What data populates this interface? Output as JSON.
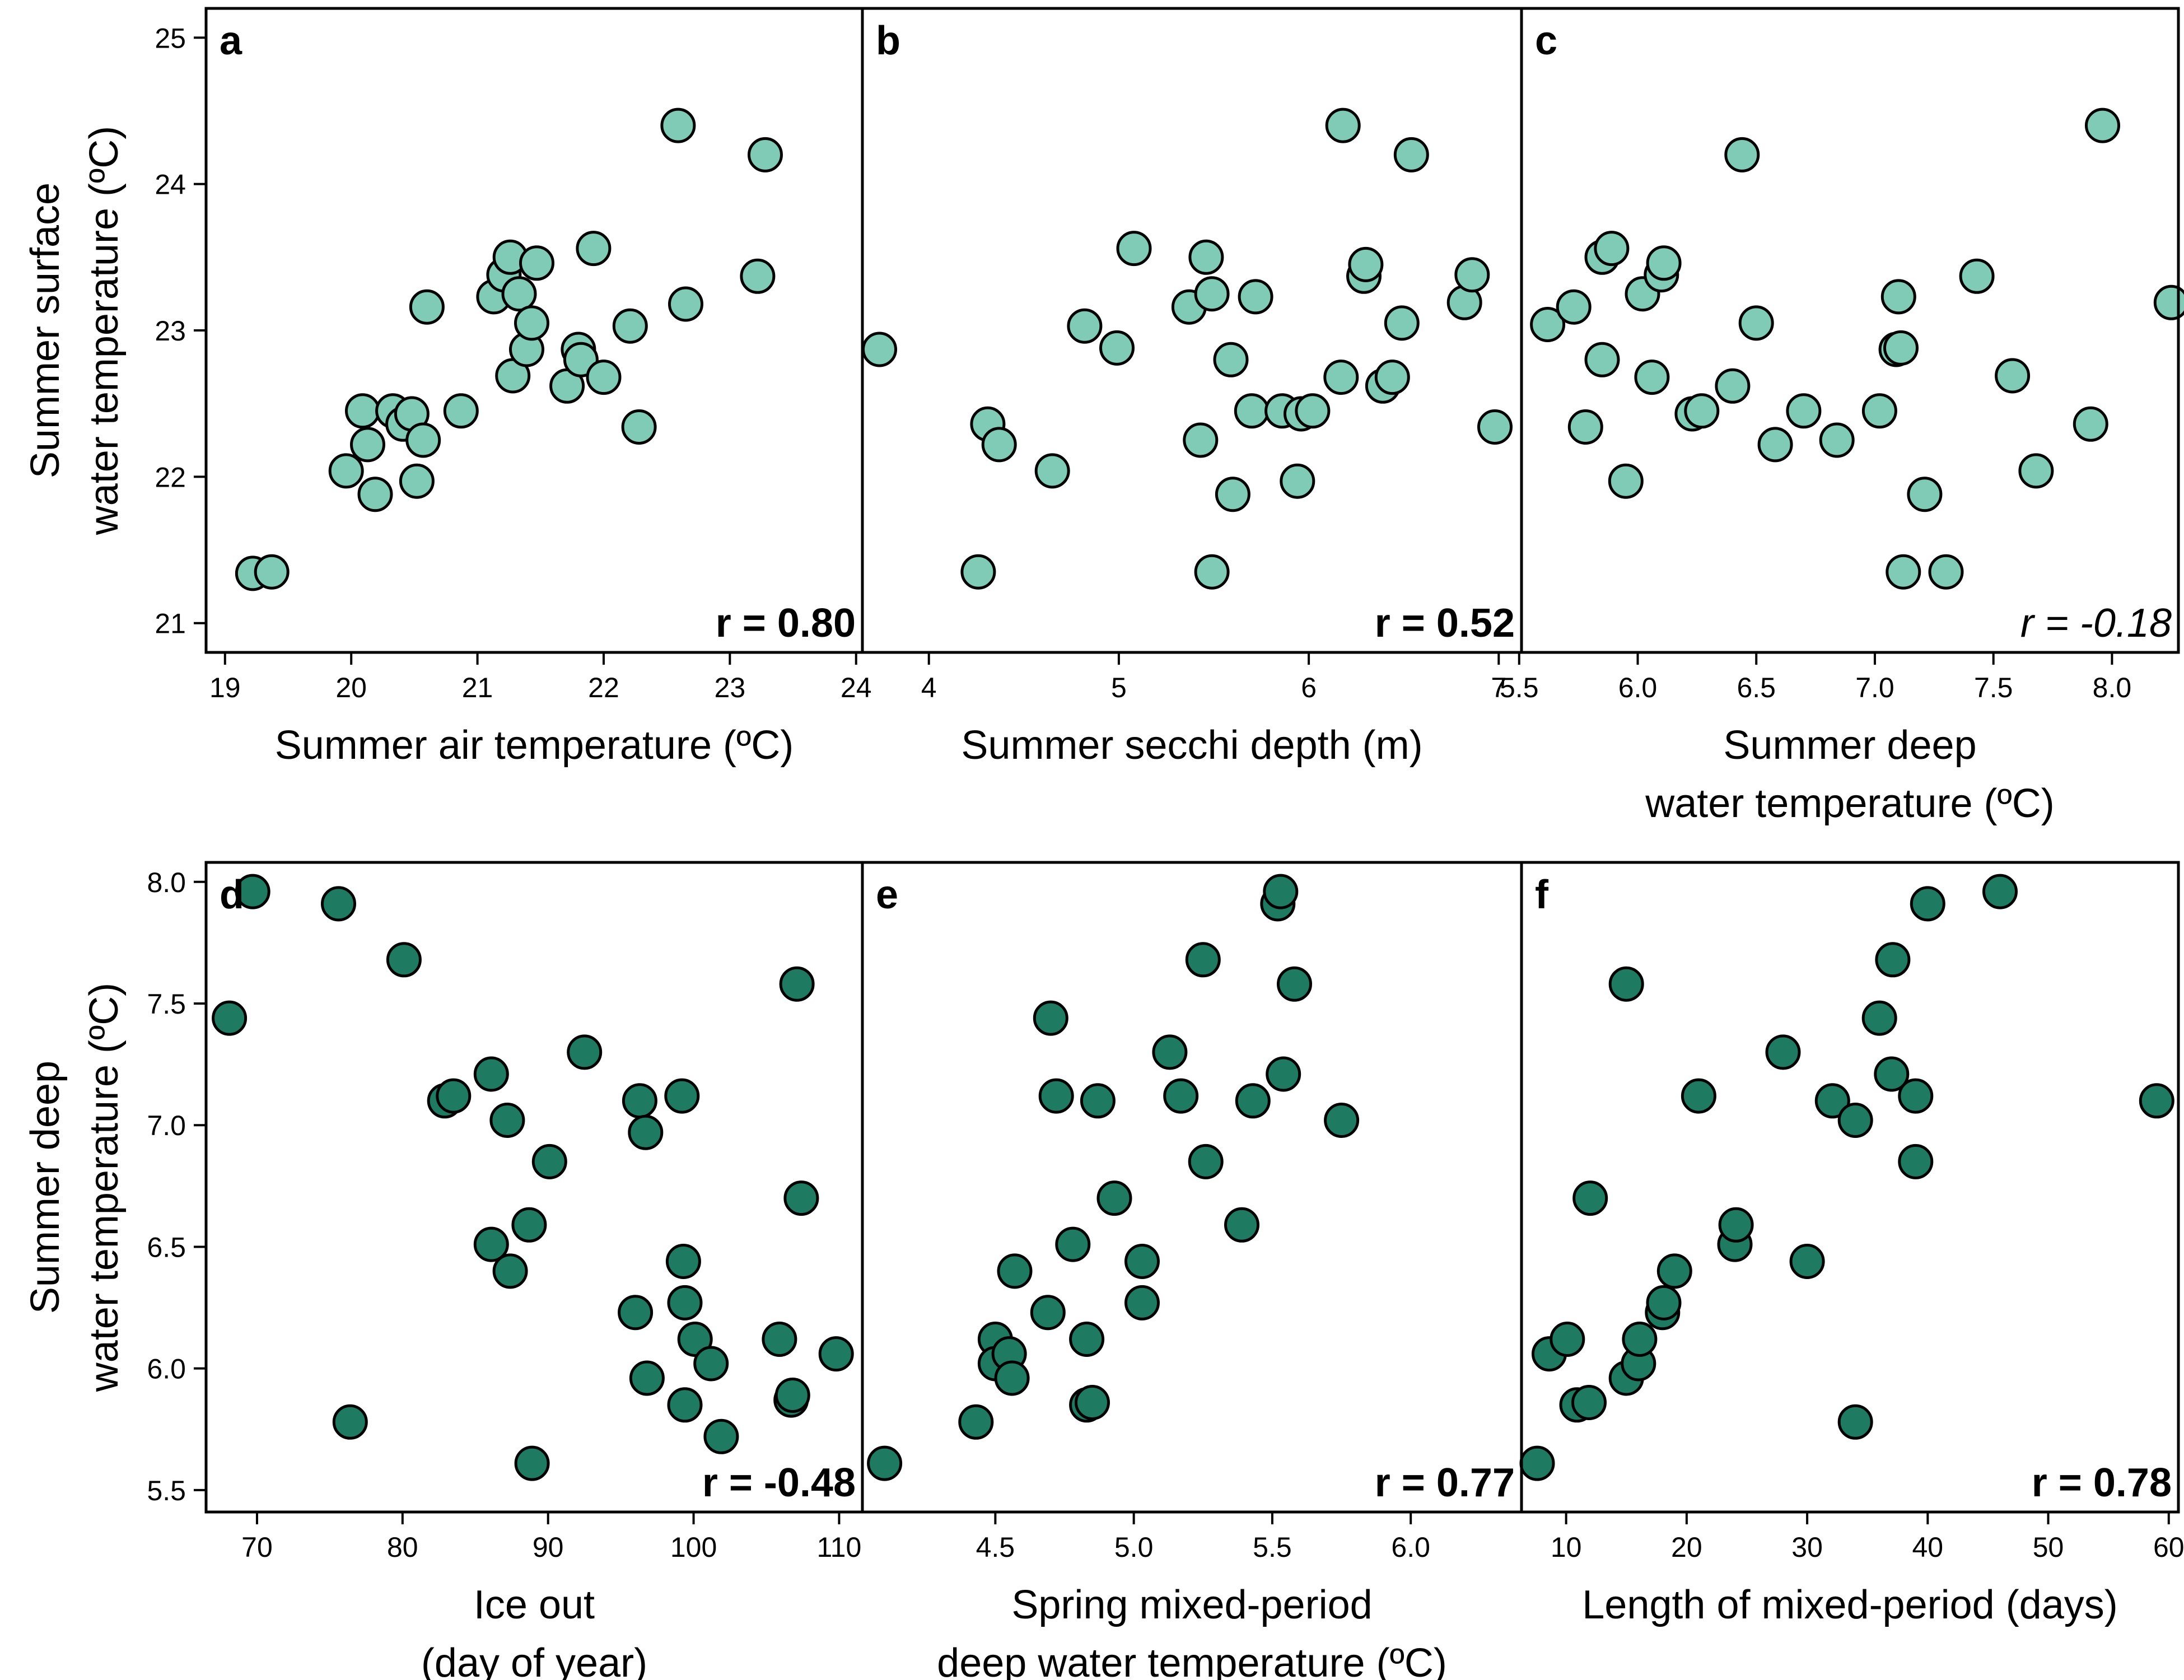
{
  "colors": {
    "top_fill": "#7fcbb5",
    "bottom_fill": "#1f7a62"
  },
  "rows": [
    {
      "ylabel_lines": [
        "Summer surface",
        "water temperature (ºC)"
      ],
      "ylim": [
        20.8,
        25.2
      ],
      "yticks": [
        21,
        22,
        23,
        24,
        25
      ],
      "fill": "#7fcbb5"
    },
    {
      "ylabel_lines": [
        "Summer deep",
        "water temperature (ºC)"
      ],
      "ylim": [
        5.41,
        8.08
      ],
      "yticks": [
        "5.5",
        "6.0",
        "6.5",
        "7.0",
        "7.5",
        "8.0"
      ],
      "fill": "#1f7a62"
    }
  ],
  "chart_data": [
    {
      "type": "scatter",
      "panel": "a",
      "r_label": "r = 0.80",
      "r_italic": false,
      "xlabel_lines": [
        "Summer air temperature (ºC)"
      ],
      "xlim": [
        18.85,
        24.05
      ],
      "xticks": [
        "19",
        "20",
        "21",
        "22",
        "23",
        "24"
      ],
      "ylim": [
        20.8,
        25.2
      ],
      "points": [
        [
          19.22,
          21.34
        ],
        [
          19.37,
          21.35
        ],
        [
          19.96,
          22.04
        ],
        [
          20.09,
          22.45
        ],
        [
          20.13,
          22.22
        ],
        [
          20.19,
          21.88
        ],
        [
          20.33,
          22.45
        ],
        [
          20.41,
          22.36
        ],
        [
          20.48,
          22.43
        ],
        [
          20.52,
          21.97
        ],
        [
          20.57,
          22.25
        ],
        [
          20.6,
          23.16
        ],
        [
          20.87,
          22.45
        ],
        [
          21.13,
          23.23
        ],
        [
          21.21,
          23.38
        ],
        [
          21.26,
          23.5
        ],
        [
          21.28,
          22.69
        ],
        [
          21.33,
          23.25
        ],
        [
          21.39,
          22.87
        ],
        [
          21.43,
          23.05
        ],
        [
          21.47,
          23.46
        ],
        [
          21.71,
          22.62
        ],
        [
          21.8,
          22.87
        ],
        [
          21.82,
          22.8
        ],
        [
          21.92,
          23.56
        ],
        [
          22.0,
          22.68
        ],
        [
          22.21,
          23.03
        ],
        [
          22.28,
          22.34
        ],
        [
          22.59,
          24.4
        ],
        [
          22.65,
          23.18
        ],
        [
          23.22,
          23.37
        ],
        [
          23.28,
          24.2
        ]
      ]
    },
    {
      "type": "scatter",
      "panel": "b",
      "r_label": "r = 0.52",
      "r_italic": false,
      "xlabel_lines": [
        "Summer secchi depth (m)"
      ],
      "xlim": [
        3.65,
        7.12
      ],
      "xticks": [
        "4",
        "5",
        "6",
        "7"
      ],
      "ylim": [
        20.8,
        25.2
      ],
      "points": [
        [
          3.74,
          22.87
        ],
        [
          4.26,
          21.35
        ],
        [
          4.31,
          22.36
        ],
        [
          4.37,
          22.22
        ],
        [
          4.65,
          22.04
        ],
        [
          4.82,
          23.03
        ],
        [
          4.99,
          22.88
        ],
        [
          5.08,
          23.56
        ],
        [
          5.37,
          23.16
        ],
        [
          5.43,
          22.25
        ],
        [
          5.46,
          23.5
        ],
        [
          5.49,
          23.25
        ],
        [
          5.49,
          21.35
        ],
        [
          5.59,
          22.8
        ],
        [
          5.6,
          21.88
        ],
        [
          5.7,
          22.45
        ],
        [
          5.72,
          23.23
        ],
        [
          5.86,
          22.45
        ],
        [
          5.94,
          21.97
        ],
        [
          5.96,
          22.43
        ],
        [
          6.02,
          22.45
        ],
        [
          6.17,
          22.68
        ],
        [
          6.18,
          24.4
        ],
        [
          6.29,
          23.37
        ],
        [
          6.3,
          23.45
        ],
        [
          6.39,
          22.62
        ],
        [
          6.44,
          22.68
        ],
        [
          6.49,
          23.05
        ],
        [
          6.54,
          24.2
        ],
        [
          6.82,
          23.19
        ],
        [
          6.86,
          23.38
        ],
        [
          6.98,
          22.34
        ]
      ]
    },
    {
      "type": "scatter",
      "panel": "c",
      "r_label": "r = -0.18",
      "r_italic": true,
      "xlabel_lines": [
        "Summer deep",
        "water temperature (ºC)"
      ],
      "xlim": [
        5.51,
        8.28
      ],
      "xticks": [
        "5.5",
        "6.0",
        "6.5",
        "7.0",
        "7.5",
        "8.0"
      ],
      "ylim": [
        20.8,
        25.2
      ],
      "points": [
        [
          5.62,
          23.04
        ],
        [
          5.73,
          23.16
        ],
        [
          5.78,
          22.34
        ],
        [
          5.85,
          22.8
        ],
        [
          5.85,
          23.5
        ],
        [
          5.89,
          23.56
        ],
        [
          5.95,
          21.97
        ],
        [
          6.02,
          23.25
        ],
        [
          6.06,
          22.68
        ],
        [
          6.1,
          23.38
        ],
        [
          6.11,
          23.46
        ],
        [
          6.23,
          22.43
        ],
        [
          6.27,
          22.45
        ],
        [
          6.4,
          22.62
        ],
        [
          6.44,
          24.2
        ],
        [
          6.5,
          23.05
        ],
        [
          6.58,
          22.22
        ],
        [
          6.7,
          22.45
        ],
        [
          6.84,
          22.25
        ],
        [
          7.02,
          22.45
        ],
        [
          7.09,
          22.87
        ],
        [
          7.1,
          23.23
        ],
        [
          7.11,
          22.88
        ],
        [
          7.12,
          21.35
        ],
        [
          7.21,
          21.88
        ],
        [
          7.3,
          21.35
        ],
        [
          7.43,
          23.37
        ],
        [
          7.58,
          22.69
        ],
        [
          7.68,
          22.04
        ],
        [
          7.91,
          22.36
        ],
        [
          7.96,
          24.4
        ],
        [
          8.25,
          23.19
        ]
      ]
    },
    {
      "type": "scatter",
      "panel": "d",
      "r_label": "r = -0.48",
      "r_italic": false,
      "xlabel_lines": [
        "Ice out",
        "(day of year)"
      ],
      "xlim": [
        66.5,
        111.6
      ],
      "xticks": [
        "70",
        "80",
        "90",
        "100",
        "110"
      ],
      "ylim": [
        5.41,
        8.08
      ],
      "points": [
        [
          68.1,
          7.44
        ],
        [
          69.7,
          7.96
        ],
        [
          75.6,
          7.91
        ],
        [
          76.4,
          5.78
        ],
        [
          80.1,
          7.68
        ],
        [
          82.9,
          7.1
        ],
        [
          83.5,
          7.12
        ],
        [
          86.1,
          7.21
        ],
        [
          86.1,
          6.51
        ],
        [
          87.2,
          7.02
        ],
        [
          87.4,
          6.4
        ],
        [
          88.7,
          6.59
        ],
        [
          88.9,
          5.61
        ],
        [
          90.1,
          6.85
        ],
        [
          92.5,
          7.3
        ],
        [
          96.0,
          6.23
        ],
        [
          96.3,
          7.1
        ],
        [
          96.7,
          6.97
        ],
        [
          96.8,
          5.96
        ],
        [
          99.2,
          7.12
        ],
        [
          99.3,
          6.44
        ],
        [
          99.4,
          6.27
        ],
        [
          99.4,
          5.85
        ],
        [
          100.1,
          6.12
        ],
        [
          101.2,
          6.02
        ],
        [
          101.9,
          5.72
        ],
        [
          105.9,
          6.12
        ],
        [
          106.7,
          5.87
        ],
        [
          106.8,
          5.89
        ],
        [
          107.1,
          7.58
        ],
        [
          107.4,
          6.7
        ],
        [
          109.8,
          6.06
        ]
      ]
    },
    {
      "type": "scatter",
      "panel": "e",
      "r_label": "r = 0.77",
      "r_italic": false,
      "xlabel_lines": [
        "Spring mixed-period",
        "deep water temperature (ºC)"
      ],
      "xlim": [
        4.02,
        6.4
      ],
      "xticks": [
        "4.5",
        "5.0",
        "5.5",
        "6.0"
      ],
      "ylim": [
        5.41,
        8.08
      ],
      "points": [
        [
          4.1,
          5.61
        ],
        [
          4.43,
          5.78
        ],
        [
          4.5,
          6.12
        ],
        [
          4.5,
          6.02
        ],
        [
          4.55,
          6.06
        ],
        [
          4.56,
          5.96
        ],
        [
          4.57,
          6.4
        ],
        [
          4.69,
          6.23
        ],
        [
          4.7,
          7.44
        ],
        [
          4.72,
          7.12
        ],
        [
          4.78,
          6.51
        ],
        [
          4.83,
          5.85
        ],
        [
          4.83,
          6.12
        ],
        [
          4.85,
          5.86
        ],
        [
          4.87,
          7.1
        ],
        [
          4.93,
          6.7
        ],
        [
          5.03,
          6.44
        ],
        [
          5.03,
          6.27
        ],
        [
          5.13,
          7.3
        ],
        [
          5.17,
          7.12
        ],
        [
          5.25,
          7.68
        ],
        [
          5.26,
          6.85
        ],
        [
          5.39,
          6.59
        ],
        [
          5.43,
          7.1
        ],
        [
          5.52,
          7.91
        ],
        [
          5.53,
          7.96
        ],
        [
          5.54,
          7.21
        ],
        [
          5.58,
          7.58
        ],
        [
          5.75,
          7.02
        ]
      ]
    },
    {
      "type": "scatter",
      "panel": "f",
      "r_label": "r = 0.78",
      "r_italic": false,
      "xlabel_lines": [
        "Length of mixed-period (days)"
      ],
      "xlim": [
        6.3,
        60.8
      ],
      "xticks": [
        "10",
        "20",
        "30",
        "40",
        "50",
        "60"
      ],
      "ylim": [
        5.41,
        8.08
      ],
      "points": [
        [
          7.6,
          5.61
        ],
        [
          8.6,
          6.06
        ],
        [
          10.1,
          6.12
        ],
        [
          10.9,
          5.85
        ],
        [
          11.9,
          5.86
        ],
        [
          12.0,
          6.7
        ],
        [
          15.0,
          7.58
        ],
        [
          15.0,
          5.96
        ],
        [
          16.0,
          6.02
        ],
        [
          16.1,
          6.12
        ],
        [
          18.0,
          6.23
        ],
        [
          18.1,
          6.27
        ],
        [
          19.0,
          6.4
        ],
        [
          21.0,
          7.12
        ],
        [
          24.0,
          6.51
        ],
        [
          24.1,
          6.59
        ],
        [
          28.0,
          7.3
        ],
        [
          30.0,
          6.44
        ],
        [
          32.1,
          7.1
        ],
        [
          34.0,
          7.02
        ],
        [
          34.0,
          5.78
        ],
        [
          36.0,
          7.44
        ],
        [
          37.0,
          7.21
        ],
        [
          37.1,
          7.68
        ],
        [
          39.0,
          7.12
        ],
        [
          39.0,
          6.85
        ],
        [
          40.0,
          7.91
        ],
        [
          46.0,
          7.96
        ],
        [
          59.0,
          7.1
        ]
      ]
    }
  ]
}
